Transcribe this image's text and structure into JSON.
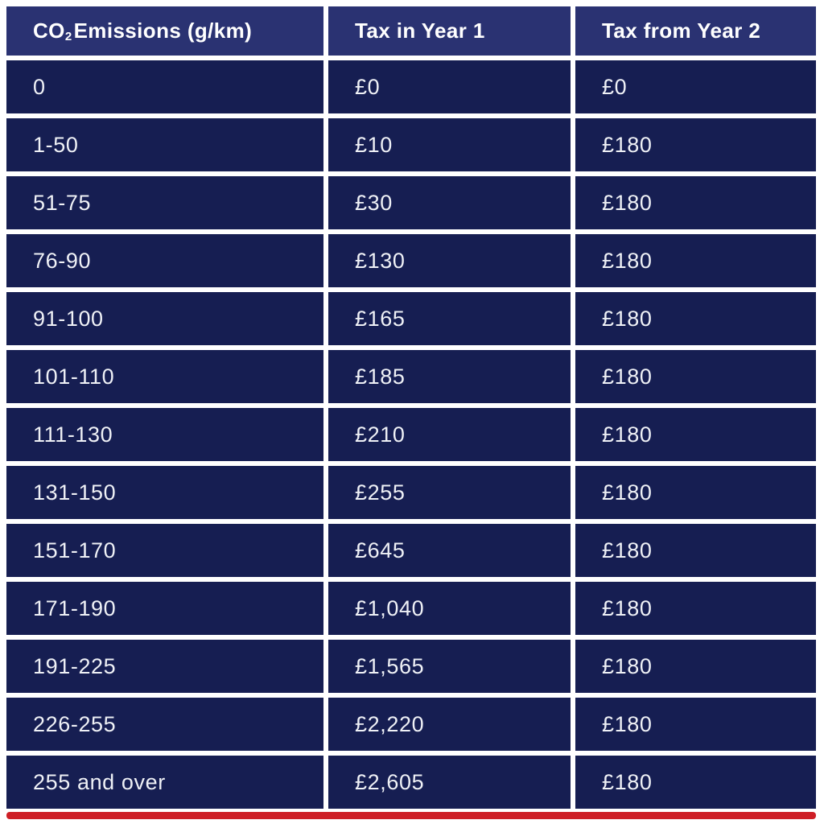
{
  "header": {
    "co2_prefix": "CO",
    "co2_sub": "2",
    "co2_suffix": " Emissions (g/km)",
    "col2": "Tax in Year 1",
    "col3": "Tax from Year 2"
  },
  "chart_data": {
    "type": "table",
    "columns": [
      "CO2 Emissions (g/km)",
      "Tax in Year 1",
      "Tax from Year 2"
    ],
    "rows": [
      {
        "co2": "0",
        "year1": "£0",
        "year2": "£0"
      },
      {
        "co2": "1-50",
        "year1": "£10",
        "year2": "£180"
      },
      {
        "co2": "51-75",
        "year1": "£30",
        "year2": "£180"
      },
      {
        "co2": "76-90",
        "year1": "£130",
        "year2": "£180"
      },
      {
        "co2": "91-100",
        "year1": "£165",
        "year2": "£180"
      },
      {
        "co2": "101-110",
        "year1": "£185",
        "year2": "£180"
      },
      {
        "co2": "111-130",
        "year1": "£210",
        "year2": "£180"
      },
      {
        "co2": "131-150",
        "year1": "£255",
        "year2": "£180"
      },
      {
        "co2": "151-170",
        "year1": "£645",
        "year2": "£180"
      },
      {
        "co2": "171-190",
        "year1": "£1,040",
        "year2": "£180"
      },
      {
        "co2": "191-225",
        "year1": "£1,565",
        "year2": "£180"
      },
      {
        "co2": "226-255",
        "year1": "£2,220",
        "year2": "£180"
      },
      {
        "co2": "255 and over",
        "year1": "£2,605",
        "year2": "£180"
      }
    ]
  },
  "colors": {
    "header_bg": "#2a3272",
    "cell_bg": "#161e52",
    "accent_red": "#ce1f26",
    "text": "#eff1f6",
    "page_bg": "#ffffff"
  }
}
